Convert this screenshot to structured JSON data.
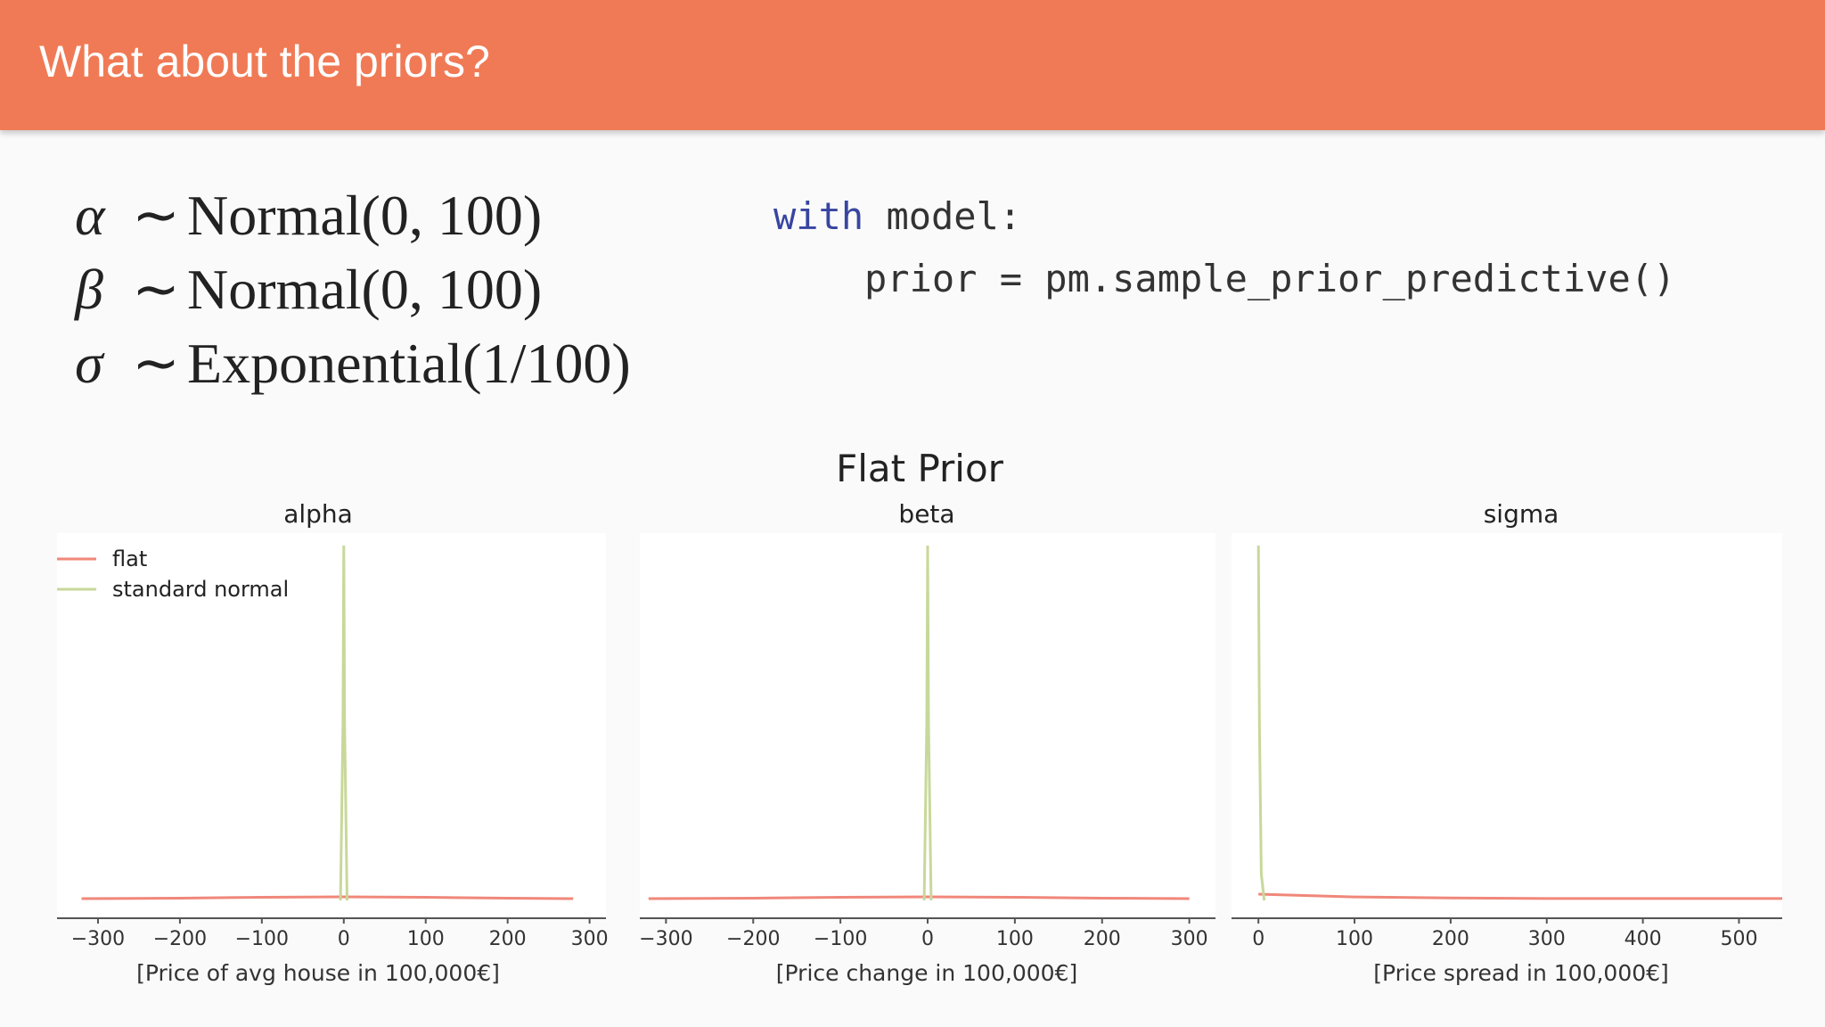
{
  "header": {
    "title": "What about the priors?"
  },
  "math": [
    {
      "symbol": "α",
      "dist": "Normal(0, 100)"
    },
    {
      "symbol": "β",
      "dist": "Normal(0, 100)"
    },
    {
      "symbol": "σ",
      "dist": "Exponential(1/100)"
    }
  ],
  "code": {
    "keyword": "with",
    "line1_rest": " model:",
    "line2": "prior = pm.sample_prior_predictive()"
  },
  "colors": {
    "flat": "#f0877a",
    "standard_normal": "#c8d89a",
    "header": "#f07a55"
  },
  "chart_data": {
    "type": "line",
    "suptitle": "Flat Prior",
    "legend": {
      "placement": "top-left",
      "entries": [
        "flat",
        "standard normal"
      ]
    },
    "panels": [
      {
        "title": "alpha",
        "xlabel": "[Price of avg house in 100,000€]",
        "xlim": [
          -350,
          320
        ],
        "ticks": [
          -300,
          -200,
          -100,
          0,
          100,
          200,
          300
        ],
        "tick_labels": [
          "−300",
          "−200",
          "−100",
          "0",
          "100",
          "200",
          "300"
        ],
        "series": [
          {
            "name": "flat",
            "x": [
              -320,
              -200,
              -100,
              0,
              100,
              200,
              280
            ],
            "y": [
              0.002,
              0.0025,
              0.0035,
              0.004,
              0.0035,
              0.0025,
              0.002
            ]
          },
          {
            "name": "standard normal",
            "x": [
              -4,
              -1,
              0,
              1,
              4
            ],
            "y": [
              0,
              0.2,
              0.4,
              0.2,
              0
            ]
          }
        ]
      },
      {
        "title": "beta",
        "xlabel": "[Price change in 100,000€]",
        "xlim": [
          -330,
          330
        ],
        "ticks": [
          -300,
          -200,
          -100,
          0,
          100,
          200,
          300
        ],
        "tick_labels": [
          "−300",
          "−200",
          "−100",
          "0",
          "100",
          "200",
          "300"
        ],
        "series": [
          {
            "name": "flat",
            "x": [
              -320,
              -200,
              -100,
              0,
              100,
              200,
              300
            ],
            "y": [
              0.002,
              0.0025,
              0.0035,
              0.004,
              0.0035,
              0.0025,
              0.002
            ]
          },
          {
            "name": "standard normal",
            "x": [
              -4,
              -1,
              0,
              1,
              4
            ],
            "y": [
              0,
              0.2,
              0.4,
              0.2,
              0
            ]
          }
        ]
      },
      {
        "title": "sigma",
        "xlabel": "[Price spread in 100,000€]",
        "xlim": [
          -28,
          545
        ],
        "ticks": [
          0,
          100,
          200,
          300,
          400,
          500
        ],
        "tick_labels": [
          "0",
          "100",
          "200",
          "300",
          "400",
          "500"
        ],
        "series": [
          {
            "name": "flat",
            "x": [
              0,
              100,
              200,
              300,
              400,
              545
            ],
            "y": [
              0.01,
              0.0055,
              0.004,
              0.003,
              0.003,
              0.003
            ]
          },
          {
            "name": "standard normal",
            "x": [
              0,
              1,
              3,
              6
            ],
            "y": [
              0.8,
              0.4,
              0.06,
              0
            ]
          }
        ]
      }
    ]
  }
}
